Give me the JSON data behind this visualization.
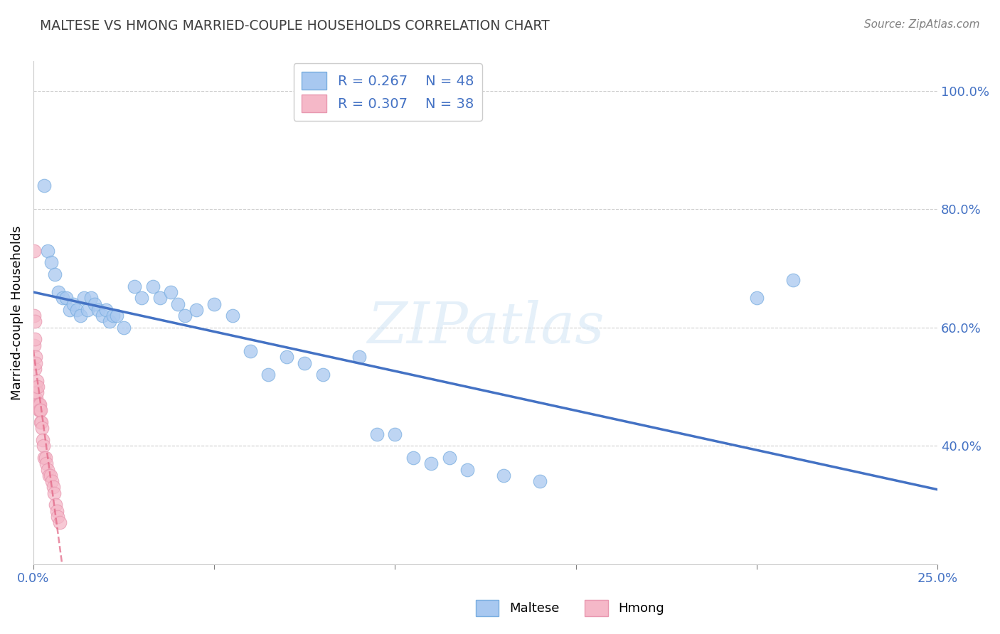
{
  "title": "MALTESE VS HMONG MARRIED-COUPLE HOUSEHOLDS CORRELATION CHART",
  "source": "Source: ZipAtlas.com",
  "ylabel": "Married-couple Households",
  "ytick_labels": [
    "40.0%",
    "60.0%",
    "80.0%",
    "100.0%"
  ],
  "ytick_values": [
    0.4,
    0.6,
    0.8,
    1.0
  ],
  "xlim": [
    0.0,
    0.25
  ],
  "ylim": [
    0.2,
    1.05
  ],
  "watermark": "ZIPatlas",
  "legend_blue_r": "R = 0.267",
  "legend_blue_n": "N = 48",
  "legend_pink_r": "R = 0.307",
  "legend_pink_n": "N = 38",
  "maltese_color": "#a8c8f0",
  "hmong_color": "#f5b8c8",
  "maltese_edge_color": "#7aaee0",
  "hmong_edge_color": "#e898b0",
  "maltese_line_color": "#4472c4",
  "hmong_line_color": "#e06080",
  "title_color": "#404040",
  "source_color": "#808080",
  "tick_color": "#4472c4",
  "maltese_x": [
    0.003,
    0.004,
    0.005,
    0.006,
    0.007,
    0.008,
    0.009,
    0.01,
    0.011,
    0.012,
    0.013,
    0.014,
    0.015,
    0.016,
    0.017,
    0.018,
    0.019,
    0.02,
    0.021,
    0.022,
    0.023,
    0.025,
    0.028,
    0.03,
    0.033,
    0.035,
    0.038,
    0.04,
    0.042,
    0.045,
    0.05,
    0.055,
    0.06,
    0.065,
    0.07,
    0.075,
    0.08,
    0.09,
    0.095,
    0.1,
    0.105,
    0.11,
    0.115,
    0.12,
    0.13,
    0.14,
    0.2,
    0.21
  ],
  "maltese_y": [
    0.84,
    0.73,
    0.71,
    0.69,
    0.66,
    0.65,
    0.65,
    0.63,
    0.64,
    0.63,
    0.62,
    0.65,
    0.63,
    0.65,
    0.64,
    0.63,
    0.62,
    0.63,
    0.61,
    0.62,
    0.62,
    0.6,
    0.67,
    0.65,
    0.67,
    0.65,
    0.66,
    0.64,
    0.62,
    0.63,
    0.64,
    0.62,
    0.56,
    0.52,
    0.55,
    0.54,
    0.52,
    0.55,
    0.42,
    0.42,
    0.38,
    0.37,
    0.38,
    0.36,
    0.35,
    0.34,
    0.65,
    0.68
  ],
  "hmong_x": [
    0.0002,
    0.0003,
    0.0003,
    0.0004,
    0.0005,
    0.0005,
    0.0006,
    0.0007,
    0.0008,
    0.0009,
    0.001,
    0.0011,
    0.0012,
    0.0013,
    0.0014,
    0.0015,
    0.0016,
    0.0017,
    0.0018,
    0.0019,
    0.002,
    0.0021,
    0.0023,
    0.0025,
    0.0027,
    0.003,
    0.0033,
    0.0036,
    0.004,
    0.0044,
    0.0048,
    0.0052,
    0.0055,
    0.0058,
    0.0062,
    0.0065,
    0.0068,
    0.0072
  ],
  "hmong_y": [
    0.73,
    0.62,
    0.57,
    0.61,
    0.58,
    0.53,
    0.55,
    0.54,
    0.5,
    0.48,
    0.51,
    0.49,
    0.47,
    0.5,
    0.47,
    0.47,
    0.46,
    0.47,
    0.46,
    0.44,
    0.46,
    0.44,
    0.43,
    0.41,
    0.4,
    0.38,
    0.38,
    0.37,
    0.36,
    0.35,
    0.35,
    0.34,
    0.33,
    0.32,
    0.3,
    0.29,
    0.28,
    0.27
  ]
}
